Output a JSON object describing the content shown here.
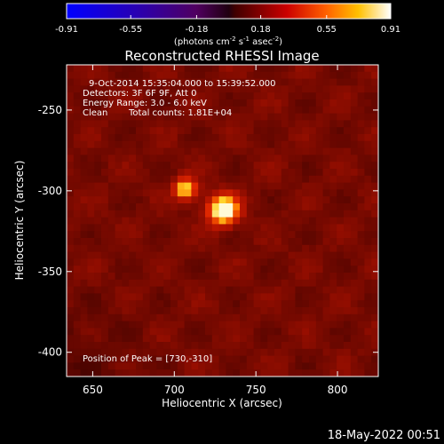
{
  "chart_data": {
    "type": "heatmap",
    "title": "Reconstructed RHESSI Image",
    "xlabel": "Heliocentric X (arcsec)",
    "ylabel": "Heliocentric Y (arcsec)",
    "xlim": [
      634,
      825
    ],
    "ylim": [
      -415,
      -222
    ],
    "x_ticks": [
      650,
      700,
      750,
      800
    ],
    "y_ticks": [
      -250,
      -300,
      -350,
      -400
    ],
    "colorbar": {
      "min": -0.91,
      "max": 0.91,
      "ticks": [
        "-0.91",
        "-0.55",
        "-0.18",
        "0.18",
        "0.55",
        "0.91"
      ],
      "unit_prefix": "(photons cm",
      "unit_exp1": "-2",
      "unit_mid": " s",
      "unit_exp2": "-1",
      "unit_mid2": " asec",
      "unit_exp3": "-2",
      "unit_suffix": ")"
    },
    "annotations": {
      "time_range": "9-Oct-2014 15:35:04.000 to 15:39:52.000",
      "detectors": "Detectors: 3F 6F 9F, Att 0",
      "energy": "Energy Range: 3.0 - 6.0 keV",
      "method": "Clean",
      "counts": "Total counts: 1.81E+04",
      "peak": "Position of Peak = [730,-310]"
    },
    "sources": [
      {
        "x": 730,
        "y": -312,
        "peak": 0.91
      },
      {
        "x": 707,
        "y": -299,
        "peak": 0.72
      }
    ],
    "peak_position": [
      730,
      -310
    ]
  },
  "footer": {
    "date": "18-May-2022 00:51"
  }
}
